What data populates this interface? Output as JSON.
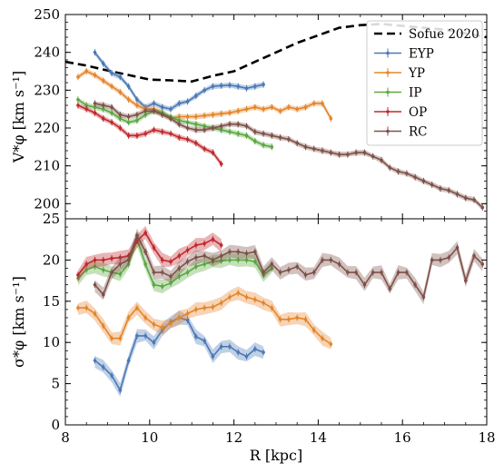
{
  "chart_data": [
    {
      "type": "line",
      "panel": "top",
      "ylabel": "V*φ [km s⁻¹]",
      "xlim": [
        8,
        18
      ],
      "ylim": [
        196,
        250
      ],
      "yticks": [
        200,
        210,
        220,
        230,
        240,
        250
      ],
      "legend": {
        "placement": "top-right",
        "entries": [
          "Sofue 2020",
          "EYP",
          "YP",
          "IP",
          "OP",
          "RC"
        ]
      },
      "series": [
        {
          "name": "Sofue 2020",
          "style": "dashed",
          "color": "#000000",
          "x": [
            8.0,
            8.5,
            9.0,
            9.5,
            10.0,
            10.5,
            11.0,
            11.5,
            12.0,
            12.5,
            13.0,
            13.5,
            14.0,
            14.5,
            15.0,
            15.5,
            16.0,
            16.5,
            17.0,
            17.5,
            18.0
          ],
          "y": [
            237.5,
            236.5,
            235.2,
            234.0,
            232.8,
            232.6,
            232.3,
            233.8,
            235.0,
            237.5,
            240.0,
            242.5,
            244.5,
            246.5,
            247.2,
            247.5,
            247.0,
            246.5,
            246.0,
            245.0,
            244.0
          ]
        },
        {
          "name": "EYP",
          "color": "#4a78b5",
          "x": [
            8.7,
            8.9,
            9.1,
            9.3,
            9.5,
            9.7,
            9.9,
            10.1,
            10.3,
            10.5,
            10.7,
            10.9,
            11.1,
            11.3,
            11.5,
            11.7,
            11.9,
            12.1,
            12.3,
            12.5,
            12.7
          ],
          "y": [
            240.0,
            237.0,
            234.5,
            233.5,
            231.0,
            227.5,
            225.5,
            226.5,
            225.5,
            225.0,
            226.5,
            227.0,
            228.5,
            230.0,
            231.0,
            231.2,
            231.3,
            231.0,
            230.5,
            231.0,
            231.5
          ]
        },
        {
          "name": "YP",
          "color": "#e4852a",
          "x": [
            8.3,
            8.5,
            8.7,
            8.9,
            9.1,
            9.3,
            9.5,
            9.7,
            9.9,
            10.1,
            10.3,
            10.5,
            10.7,
            10.9,
            11.1,
            11.3,
            11.5,
            11.7,
            11.9,
            12.1,
            12.3,
            12.5,
            12.7,
            12.9,
            13.1,
            13.3,
            13.5,
            13.7,
            13.9,
            14.1,
            14.3
          ],
          "y": [
            233.5,
            235.0,
            234.0,
            232.5,
            231.0,
            229.5,
            227.5,
            226.0,
            225.0,
            225.0,
            224.0,
            222.5,
            223.0,
            223.0,
            223.0,
            223.3,
            223.5,
            223.8,
            224.0,
            224.5,
            225.0,
            225.5,
            225.0,
            225.5,
            224.5,
            225.5,
            225.0,
            225.5,
            226.5,
            226.5,
            222.5
          ]
        },
        {
          "name": "IP",
          "color": "#5aa840",
          "x": [
            8.3,
            8.5,
            8.7,
            8.9,
            9.1,
            9.3,
            9.5,
            9.7,
            9.9,
            10.1,
            10.3,
            10.5,
            10.7,
            10.9,
            11.1,
            11.3,
            11.5,
            11.7,
            11.9,
            12.1,
            12.3,
            12.5,
            12.7,
            12.9
          ],
          "y": [
            227.5,
            226.0,
            225.5,
            225.0,
            224.0,
            222.5,
            221.5,
            222.0,
            223.5,
            224.5,
            224.0,
            223.0,
            222.0,
            221.5,
            221.0,
            220.5,
            220.0,
            219.5,
            219.0,
            218.5,
            218.0,
            216.5,
            215.5,
            215.0
          ]
        },
        {
          "name": "OP",
          "color": "#c0282d",
          "x": [
            8.3,
            8.5,
            8.7,
            8.9,
            9.1,
            9.3,
            9.5,
            9.7,
            9.9,
            10.1,
            10.3,
            10.5,
            10.7,
            10.9,
            11.1,
            11.3,
            11.5,
            11.7
          ],
          "y": [
            226.0,
            225.0,
            224.0,
            222.5,
            221.5,
            220.0,
            218.0,
            218.0,
            218.5,
            219.5,
            219.0,
            218.5,
            217.5,
            217.0,
            216.0,
            214.5,
            213.5,
            210.5
          ]
        },
        {
          "name": "RC",
          "color": "#7d5149",
          "x": [
            8.7,
            8.9,
            9.1,
            9.3,
            9.5,
            9.7,
            9.9,
            10.1,
            10.3,
            10.5,
            10.7,
            10.9,
            11.1,
            11.3,
            11.5,
            11.7,
            11.9,
            12.1,
            12.3,
            12.5,
            12.7,
            12.9,
            13.1,
            13.3,
            13.5,
            13.7,
            13.9,
            14.1,
            14.3,
            14.5,
            14.7,
            14.9,
            15.1,
            15.3,
            15.5,
            15.7,
            15.9,
            16.1,
            16.3,
            16.5,
            16.7,
            16.9,
            17.1,
            17.3,
            17.5,
            17.7,
            17.9
          ],
          "y": [
            226.5,
            226.0,
            225.5,
            223.5,
            223.0,
            223.5,
            224.5,
            224.5,
            223.5,
            222.5,
            221.0,
            220.0,
            219.5,
            219.5,
            220.0,
            220.5,
            221.0,
            221.0,
            220.5,
            219.0,
            218.5,
            218.0,
            217.5,
            217.0,
            216.0,
            215.0,
            214.5,
            214.0,
            213.5,
            213.0,
            213.0,
            213.5,
            213.5,
            212.5,
            211.5,
            209.5,
            208.5,
            208.0,
            207.0,
            206.0,
            205.0,
            204.0,
            203.5,
            202.5,
            201.5,
            201.0,
            199.0
          ]
        }
      ]
    },
    {
      "type": "line",
      "panel": "bottom",
      "xlabel": "R [kpc]",
      "ylabel": "σ*φ [km s⁻¹]",
      "xlim": [
        8,
        18
      ],
      "ylim": [
        0,
        25
      ],
      "xticks": [
        8,
        10,
        12,
        14,
        16,
        18
      ],
      "yticks": [
        0,
        5,
        10,
        15,
        20,
        25
      ],
      "series": [
        {
          "name": "EYP",
          "color": "#4a78b5",
          "x": [
            8.7,
            8.9,
            9.1,
            9.3,
            9.5,
            9.7,
            9.9,
            10.1,
            10.3,
            10.5,
            10.7,
            10.9,
            11.1,
            11.3,
            11.5,
            11.7,
            11.9,
            12.1,
            12.3,
            12.5,
            12.7
          ],
          "y": [
            7.8,
            7.0,
            6.0,
            4.2,
            7.8,
            10.8,
            10.8,
            10.0,
            11.5,
            12.5,
            13.0,
            12.7,
            10.7,
            10.2,
            8.3,
            9.5,
            9.5,
            8.8,
            8.3,
            9.2,
            8.8
          ]
        },
        {
          "name": "YP",
          "color": "#e4852a",
          "x": [
            8.3,
            8.5,
            8.7,
            8.9,
            9.1,
            9.3,
            9.5,
            9.7,
            9.9,
            10.1,
            10.3,
            10.5,
            10.7,
            10.9,
            11.1,
            11.3,
            11.5,
            11.7,
            11.9,
            12.1,
            12.3,
            12.5,
            12.7,
            12.9,
            13.1,
            13.3,
            13.5,
            13.7,
            13.9,
            14.1,
            14.3
          ],
          "y": [
            14.2,
            14.2,
            13.5,
            12.0,
            10.5,
            10.5,
            13.0,
            14.2,
            13.0,
            12.2,
            11.8,
            12.3,
            13.0,
            13.5,
            14.0,
            14.2,
            14.3,
            14.8,
            15.5,
            16.0,
            15.5,
            15.2,
            14.8,
            14.2,
            12.8,
            12.8,
            13.0,
            12.8,
            11.5,
            10.5,
            9.8
          ]
        },
        {
          "name": "IP",
          "color": "#5aa840",
          "x": [
            8.3,
            8.5,
            8.7,
            8.9,
            9.1,
            9.3,
            9.5,
            9.7,
            9.9,
            10.1,
            10.3,
            10.5,
            10.7,
            10.9,
            11.1,
            11.3,
            11.5,
            11.7,
            11.9,
            12.1,
            12.3,
            12.5,
            12.7,
            12.9
          ],
          "y": [
            17.8,
            18.8,
            19.2,
            18.8,
            18.5,
            18.3,
            19.5,
            22.5,
            19.5,
            17.0,
            16.8,
            17.2,
            18.0,
            18.5,
            19.2,
            19.5,
            19.8,
            19.9,
            20.0,
            20.0,
            20.0,
            19.8,
            18.2,
            19.0
          ]
        },
        {
          "name": "OP",
          "color": "#c0282d",
          "x": [
            8.3,
            8.5,
            8.7,
            8.9,
            9.1,
            9.3,
            9.5,
            9.7,
            9.9,
            10.1,
            10.3,
            10.5,
            10.7,
            10.9,
            11.1,
            11.3,
            11.5,
            11.7
          ],
          "y": [
            18.2,
            19.5,
            20.0,
            20.0,
            20.2,
            20.3,
            20.5,
            22.3,
            23.3,
            21.5,
            20.0,
            19.8,
            20.5,
            21.2,
            21.8,
            22.0,
            22.5,
            21.8
          ]
        },
        {
          "name": "RC",
          "color": "#7d5149",
          "x": [
            8.7,
            8.9,
            9.1,
            9.3,
            9.5,
            9.7,
            9.9,
            10.1,
            10.3,
            10.5,
            10.7,
            10.9,
            11.1,
            11.3,
            11.5,
            11.7,
            11.9,
            12.1,
            12.3,
            12.5,
            12.7,
            12.9,
            13.1,
            13.3,
            13.5,
            13.7,
            13.9,
            14.1,
            14.3,
            14.5,
            14.7,
            14.9,
            15.1,
            15.3,
            15.5,
            15.7,
            15.9,
            16.1,
            16.3,
            16.5,
            16.7,
            16.9,
            17.1,
            17.3,
            17.5,
            17.7,
            17.9
          ],
          "y": [
            17.0,
            15.8,
            18.5,
            19.5,
            20.0,
            23.0,
            21.0,
            18.5,
            18.5,
            18.0,
            19.0,
            19.8,
            20.3,
            20.5,
            20.0,
            20.5,
            21.0,
            21.0,
            20.8,
            21.0,
            18.5,
            19.5,
            18.5,
            18.8,
            19.2,
            18.2,
            18.5,
            20.0,
            20.0,
            19.5,
            18.5,
            18.5,
            17.0,
            18.5,
            18.5,
            16.5,
            18.5,
            18.5,
            17.0,
            15.5,
            20.0,
            20.0,
            20.3,
            21.5,
            17.5,
            20.5,
            19.5
          ]
        }
      ]
    }
  ],
  "style": {
    "colors": {
      "Sofue 2020": "#000000",
      "EYP": "#4a78b5",
      "YP": "#e4852a",
      "IP": "#5aa840",
      "OP": "#c0282d",
      "RC": "#7d5149"
    },
    "grid": false
  }
}
